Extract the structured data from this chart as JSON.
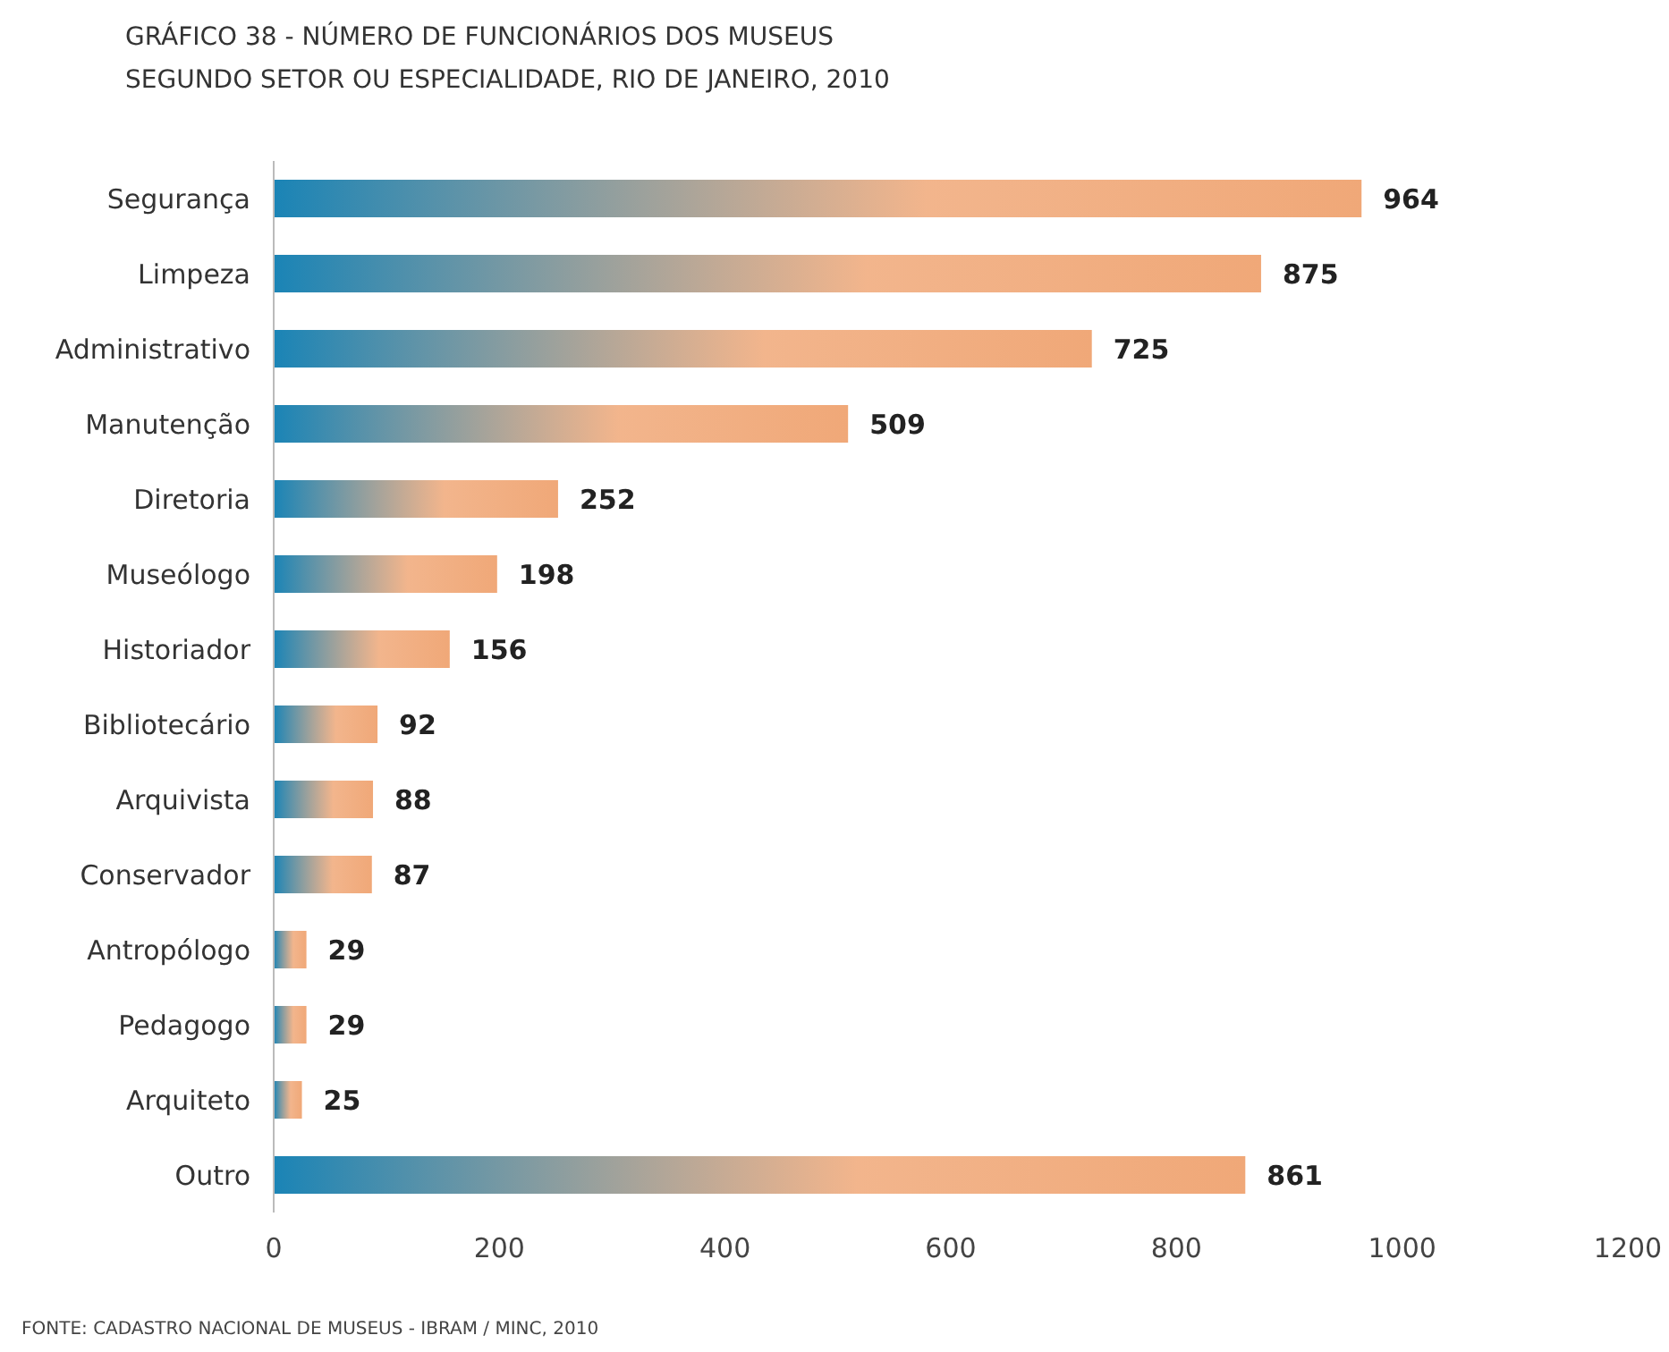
{
  "chart_data": {
    "type": "bar",
    "orientation": "horizontal",
    "title": "GRÁFICO 38 - NÚMERO DE FUNCIONÁRIOS DOS MUSEUS",
    "subtitle": "SEGUNDO SETOR OU ESPECIALIDADE, RIO DE JANEIRO, 2010",
    "categories": [
      "Segurança",
      "Limpeza",
      "Administrativo",
      "Manutenção",
      "Diretoria",
      "Museólogo",
      "Historiador",
      "Bibliotecário",
      "Arquivista",
      "Conservador",
      "Antropólogo",
      "Pedagogo",
      "Arquiteto",
      "Outro"
    ],
    "values": [
      964,
      875,
      725,
      509,
      252,
      198,
      156,
      92,
      88,
      87,
      29,
      29,
      25,
      861
    ],
    "color": "#f0a878",
    "data_labels": true,
    "grid": false,
    "xlim": [
      0,
      1200
    ],
    "xticks": [
      0,
      200,
      400,
      600,
      800,
      1000,
      1200
    ],
    "annotations": [
      "FONTE: CADASTRO NACIONAL DE MUSEUS - IBRAM / MINC, 2010"
    ]
  }
}
